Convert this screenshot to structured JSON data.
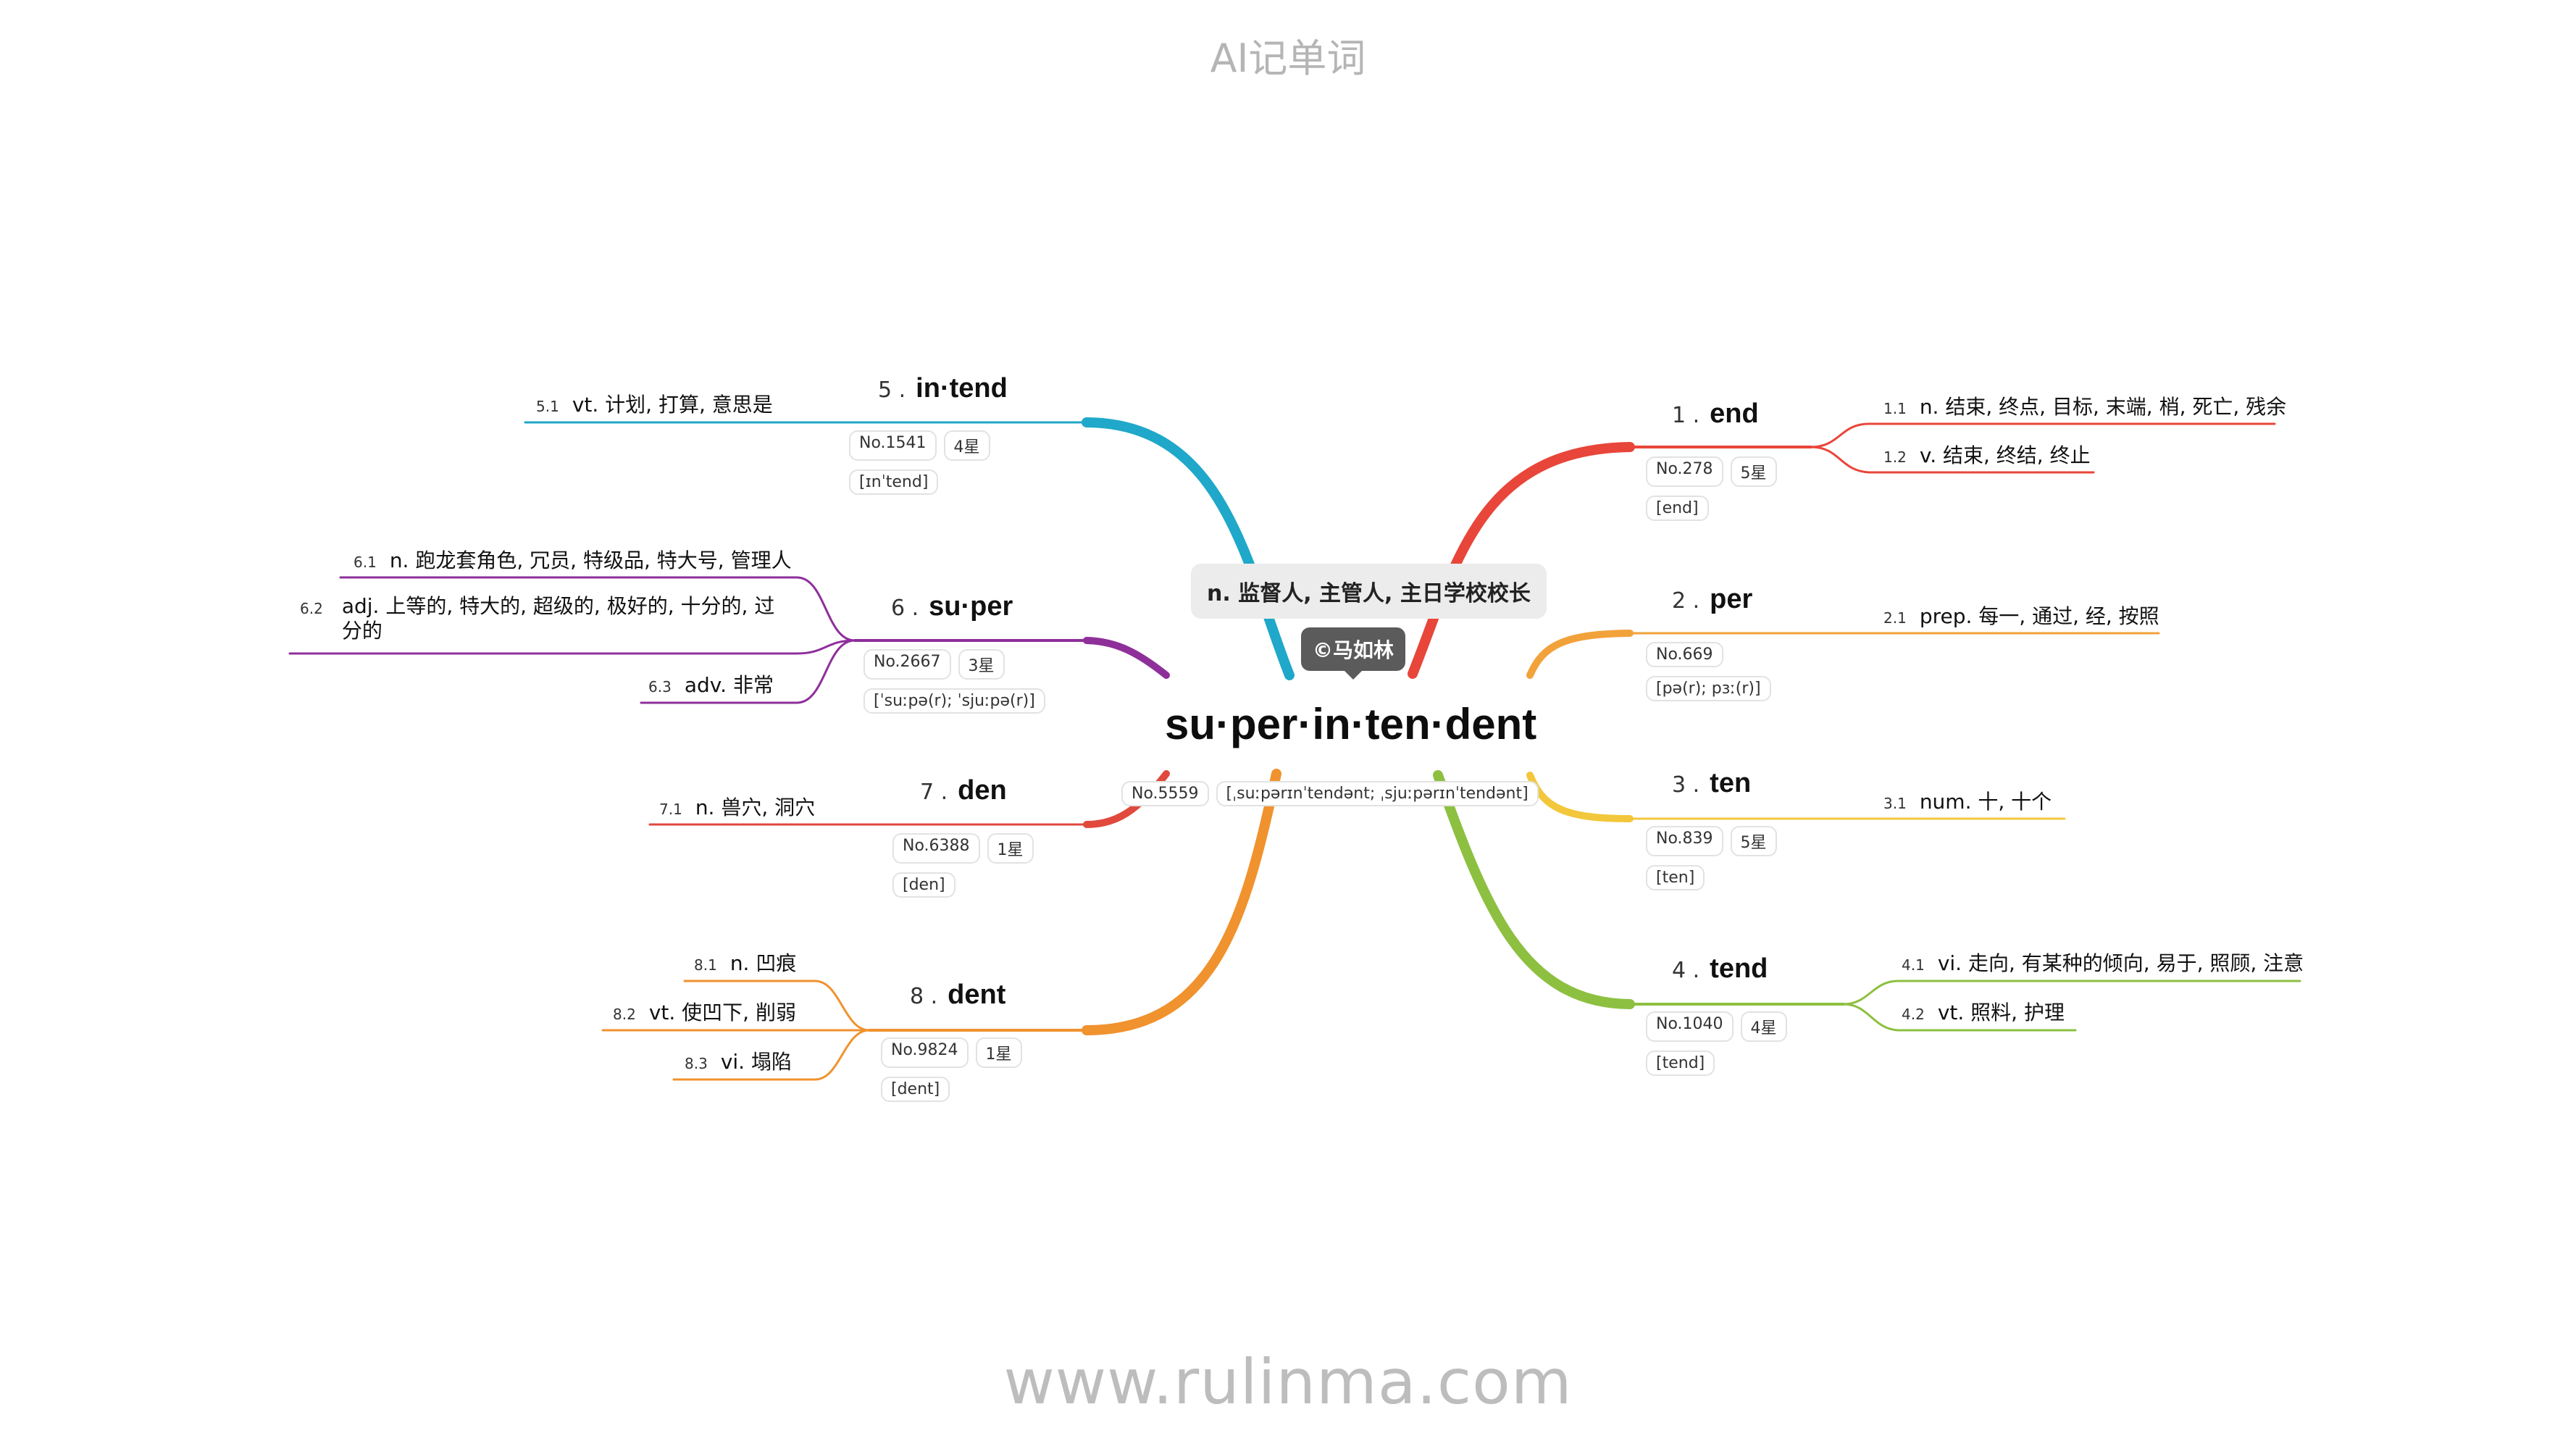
{
  "app_title": "AI记单词",
  "site": "www.rulinma.com",
  "word": {
    "syllabified": "su·per·in·ten·dent",
    "meaning": "n. 监督人, 主管人, 主日学校校长",
    "author": "©马如林",
    "rank": "No.5559",
    "phonetic": "[ˌsuːpərɪnˈtendənt; ˌsjuːpərɪnˈtendənt]"
  },
  "branches": [
    {
      "num": "1 .",
      "root": "end",
      "color": "#e8463a",
      "rank": "No.278",
      "stars": "5星",
      "phonetic": "[end]",
      "defs": [
        {
          "idx": "1.1",
          "text": "n. 结束, 终点, 目标, 末端, 梢, 死亡, 残余"
        },
        {
          "idx": "1.2",
          "text": "v. 结束, 终结, 终止"
        }
      ]
    },
    {
      "num": "2 .",
      "root": "per",
      "color": "#f2a23a",
      "rank": "No.669",
      "stars": "",
      "phonetic": "[pə(r); pɜː(r)]",
      "defs": [
        {
          "idx": "2.1",
          "text": "prep. 每一, 通过, 经, 按照"
        }
      ]
    },
    {
      "num": "3 .",
      "root": "ten",
      "color": "#f3c73b",
      "rank": "No.839",
      "stars": "5星",
      "phonetic": "[ten]",
      "defs": [
        {
          "idx": "3.1",
          "text": "num. 十, 十个"
        }
      ]
    },
    {
      "num": "4 .",
      "root": "tend",
      "color": "#8dc041",
      "rank": "No.1040",
      "stars": "4星",
      "phonetic": "[tend]",
      "defs": [
        {
          "idx": "4.1",
          "text": "vi. 走向, 有某种的倾向, 易于, 照顾, 注意"
        },
        {
          "idx": "4.2",
          "text": "vt. 照料, 护理"
        }
      ]
    },
    {
      "num": "5 .",
      "root": "in·tend",
      "color": "#1fa8c9",
      "rank": "No.1541",
      "stars": "4星",
      "phonetic": "[ɪnˈtend]",
      "defs": [
        {
          "idx": "5.1",
          "text": "vt. 计划, 打算, 意思是"
        }
      ]
    },
    {
      "num": "6 .",
      "root": "su·per",
      "color": "#8e2f9a",
      "rank": "No.2667",
      "stars": "3星",
      "phonetic": "[ˈsuːpə(r); ˈsjuːpə(r)]",
      "defs": [
        {
          "idx": "6.1",
          "text": "n. 跑龙套角色, 冗员, 特级品, 特大号, 管理人"
        },
        {
          "idx": "6.2",
          "text": "adj. 上等的, 特大的, 超级的, 极好的, 十分的, 过分的"
        },
        {
          "idx": "6.3",
          "text": "adv. 非常"
        }
      ]
    },
    {
      "num": "7 .",
      "root": "den",
      "color": "#e0493c",
      "rank": "No.6388",
      "stars": "1星",
      "phonetic": "[den]",
      "defs": [
        {
          "idx": "7.1",
          "text": "n. 兽穴, 洞穴"
        }
      ]
    },
    {
      "num": "8 .",
      "root": "dent",
      "color": "#f0922e",
      "rank": "No.9824",
      "stars": "1星",
      "phonetic": "[dent]",
      "defs": [
        {
          "idx": "8.1",
          "text": "n. 凹痕"
        },
        {
          "idx": "8.2",
          "text": "vt. 使凹下, 削弱"
        },
        {
          "idx": "8.3",
          "text": "vi. 塌陷"
        }
      ]
    }
  ]
}
